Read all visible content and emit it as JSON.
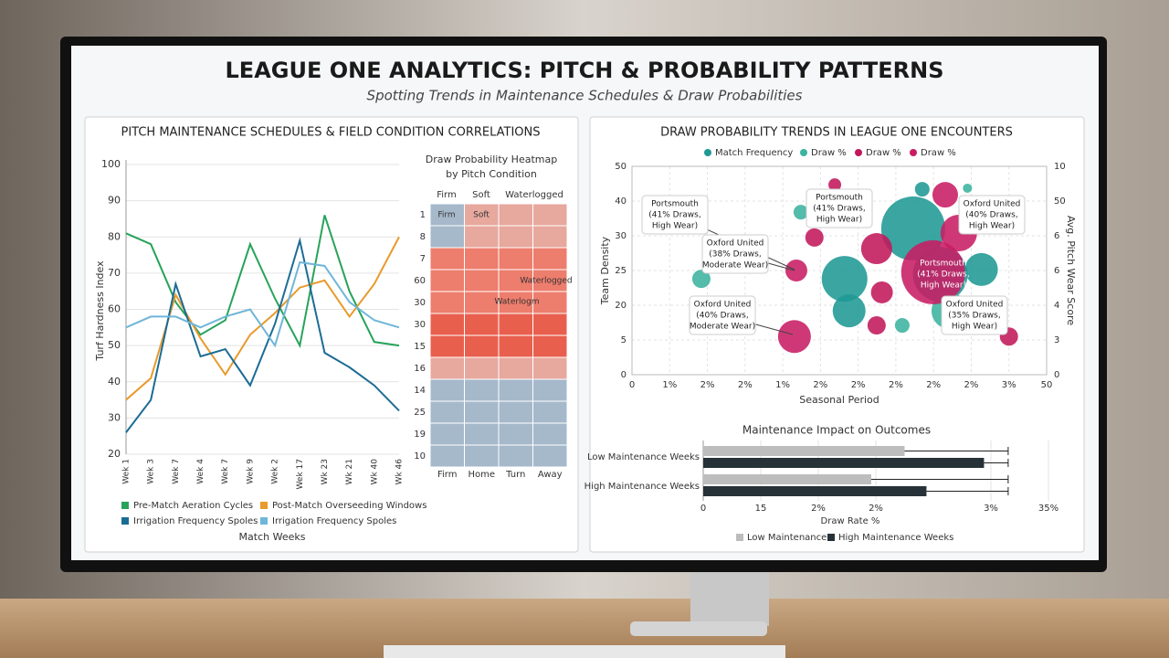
{
  "header": {
    "title": "LEAGUE ONE ANALYTICS: PITCH & PROBABILITY PATTERNS",
    "subtitle": "Spotting Trends in Maintenance Schedules & Draw Probabilities"
  },
  "chart_data": [
    {
      "type": "line",
      "title": "PITCH MAINTENANCE SCHEDULES & FIELD CONDITION CORRELATIONS",
      "ylabel": "Turf Hardness Index",
      "xlabel": "Match Weeks",
      "categories": [
        "Wek 1",
        "Wek 3",
        "Wek 7",
        "Wek 4",
        "Wek 7",
        "Wek 9",
        "Wek 2",
        "Wek 17",
        "Wk 23",
        "Wk 21",
        "Wk 40",
        "Wk 46"
      ],
      "ylim": [
        20,
        100
      ],
      "yticks": [
        20,
        30,
        40,
        50,
        60,
        70,
        80,
        90,
        100
      ],
      "grid": true,
      "series": [
        {
          "name": "Pre-Match Aeration Cycles",
          "color": "#27a35a",
          "values": [
            81,
            78,
            62,
            53,
            57,
            78,
            63,
            50,
            86,
            65,
            51,
            50
          ]
        },
        {
          "name": "Post-Match Overseeding Windows",
          "color": "#e89a2c",
          "values": [
            35,
            41,
            64,
            52,
            42,
            53,
            59,
            66,
            68,
            58,
            67,
            80
          ]
        },
        {
          "name": "Irrigation Frequency Spoles",
          "color": "#1b6c95",
          "values": [
            26,
            35,
            67,
            47,
            49,
            39,
            56,
            79,
            48,
            44,
            39,
            32
          ]
        },
        {
          "name": "Irrigation Frequency Spoles",
          "color": "#6fb6d9",
          "values": [
            55,
            58,
            58,
            55,
            58,
            60,
            50,
            73,
            72,
            62,
            57,
            55
          ]
        }
      ]
    },
    {
      "type": "heatmap",
      "title": [
        "Draw Probability Heatmap",
        "by Pitch Condition"
      ],
      "top_labels": [
        "Firm",
        "Soft",
        "Waterlogged"
      ],
      "columns": [
        "Firm",
        "Home",
        "Turn",
        "Away"
      ],
      "rows": [
        "1",
        "8",
        "7",
        "60",
        "30",
        "30",
        "15",
        "16",
        "14",
        "25",
        "19",
        "10"
      ],
      "annotations": [
        "Firm",
        "Soft",
        "Waterlogged",
        "Waterlogm"
      ],
      "vlim": [
        0,
        100
      ],
      "colors": {
        "low": "#86c2e2",
        "mid": "#f2a596",
        "high": "#e5412f"
      },
      "values": [
        [
          15,
          45,
          45,
          45
        ],
        [
          15,
          45,
          45,
          45
        ],
        [
          70,
          70,
          70,
          70
        ],
        [
          70,
          70,
          70,
          70
        ],
        [
          70,
          70,
          70,
          70
        ],
        [
          85,
          85,
          85,
          85
        ],
        [
          85,
          85,
          85,
          85
        ],
        [
          45,
          45,
          45,
          45
        ],
        [
          15,
          15,
          15,
          15
        ],
        [
          15,
          15,
          15,
          15
        ],
        [
          15,
          15,
          15,
          15
        ],
        [
          15,
          15,
          15,
          15
        ]
      ]
    },
    {
      "type": "bubble",
      "title": "DRAW PROBABILITY TRENDS IN LEAGUE ONE ENCOUNTERS",
      "xlabel": "Seasonal Period",
      "ylabel": "Team Density",
      "y2label": "Avg. Pitch Wear Score",
      "xlim": [
        0,
        11
      ],
      "xticks": [
        0,
        {
          "value": 1,
          "label": "1%"
        },
        {
          "value": 2,
          "label": "2%"
        },
        {
          "value": 3,
          "label": "2%"
        },
        {
          "value": 4,
          "label": "1%"
        },
        {
          "value": 5,
          "label": "2%"
        },
        {
          "value": 6,
          "label": "2%"
        },
        {
          "value": 7,
          "label": "2%"
        },
        {
          "value": 8,
          "label": "2%"
        },
        {
          "value": 9,
          "label": "2%"
        },
        {
          "value": 10,
          "label": "3%"
        },
        {
          "value": 11,
          "label": "50"
        }
      ],
      "ylim": [
        0,
        6
      ],
      "yticks": [
        0,
        {
          "value": 1,
          "label": "5"
        },
        {
          "value": 2,
          "label": "20"
        },
        {
          "value": 3,
          "label": "25"
        },
        {
          "value": 4,
          "label": "30"
        },
        {
          "value": 5,
          "label": "40"
        },
        {
          "value": 6,
          "label": "50"
        }
      ],
      "y2lim": [
        0,
        6
      ],
      "y2ticks": [
        0,
        {
          "value": 1,
          "label": "3"
        },
        {
          "value": 2,
          "label": "4"
        },
        {
          "value": 3,
          "label": "6"
        },
        {
          "value": 4,
          "label": "6"
        },
        {
          "value": 5,
          "label": "50"
        },
        {
          "value": 6,
          "label": "10"
        }
      ],
      "grid": true,
      "series": [
        {
          "name": "Match Frequency",
          "color": "#1f9994",
          "x": [
            5.64,
            7.46,
            8.18,
            7.7,
            9.27,
            5.76
          ],
          "values": [
            2.76,
            4.21,
            2.89,
            5.34,
            3.03,
            1.84
          ],
          "sizes": [
            25,
            35,
            30,
            8,
            18,
            18
          ]
        },
        {
          "name": "Draw %",
          "color": "#3bb39e",
          "x": [
            1.84,
            4.48,
            7.17,
            8.43,
            8.9
          ],
          "values": [
            2.76,
            4.68,
            1.42,
            1.84,
            5.37
          ],
          "sizes": [
            10,
            8,
            8,
            20,
            5
          ]
        },
        {
          "name": "Draw %",
          "color": "#c2185b",
          "x": [
            5.38,
            4.84,
            6.49,
            6.63,
            6.49,
            10.0
          ],
          "values": [
            5.47,
            3.95,
            3.63,
            2.37,
            1.42,
            1.1
          ],
          "sizes": [
            7,
            10,
            17,
            12,
            10,
            10
          ]
        },
        {
          "name": "Draw %",
          "color": "#c81d63",
          "x": [
            4.36,
            4.31,
            8.31,
            8.67,
            7.99
          ],
          "values": [
            3.0,
            1.1,
            5.18,
            4.08,
            2.95
          ],
          "sizes": [
            12,
            18,
            14,
            20,
            35
          ]
        }
      ],
      "annotations": [
        [
          "Portsmouth",
          "(41% Draws,",
          "High Wear)"
        ],
        [
          "Oxford United",
          "(38% Draws,",
          "Moderate Wear)"
        ],
        [
          "Portsmouth",
          "(41% Draws,",
          "High Wear)"
        ],
        [
          "Oxford United",
          "(40% Draws,",
          "High Wear)"
        ],
        [
          "Portsmouth",
          "(41% Draws,",
          "High Wear)"
        ],
        [
          "Oxford United",
          "(40% Draws,",
          "Moderate Wear)"
        ],
        [
          "Oxford United",
          "(35% Draws,",
          "High Wear)"
        ]
      ]
    },
    {
      "type": "hbar",
      "title": "Maintenance Impact on Outcomes",
      "xlabel": "Draw Rate %",
      "categories": [
        "Low Maintenance Weeks",
        "High Maintenance Weeks"
      ],
      "xlim": [
        0,
        30
      ],
      "xticks": [
        0,
        {
          "value": 5,
          "label": "15"
        },
        {
          "value": 10,
          "label": "2%"
        },
        {
          "value": 15,
          "label": "2%"
        },
        {
          "value": 25,
          "label": "3%"
        },
        {
          "value": 30,
          "label": "35%"
        }
      ],
      "series": [
        {
          "name": "Low Maintenance",
          "color": "#bdbdbd",
          "values": [
            17.5,
            14.6
          ],
          "errors": [
            9,
            11.9
          ]
        },
        {
          "name": "High Maintenance Weeks",
          "color": "#263238",
          "values": [
            24.4,
            19.4
          ],
          "errors": [
            2.1,
            7.1
          ]
        }
      ]
    }
  ]
}
